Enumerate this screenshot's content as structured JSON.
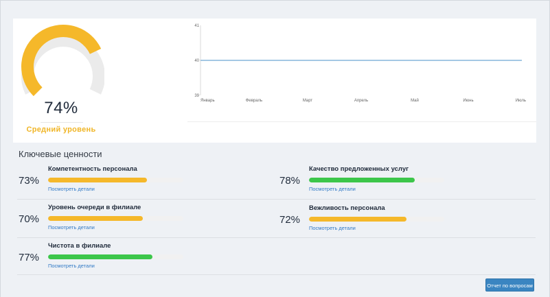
{
  "gauge": {
    "percent": 74,
    "value_text": "74%",
    "label": "Средний уровень",
    "fill_color": "#f5b82a",
    "track_color": "#ebebeb"
  },
  "chart_data": {
    "type": "line",
    "categories": [
      "Январь",
      "Февраль",
      "Март",
      "Апрель",
      "Май",
      "Июнь",
      "Июль"
    ],
    "y_ticks": [
      "41",
      "40",
      "39"
    ],
    "ylim": [
      39,
      41
    ],
    "grid": false,
    "series": [
      {
        "values": [
          40,
          40,
          40,
          40,
          40,
          40,
          40
        ],
        "color": "#4a90c8"
      }
    ]
  },
  "values_section": {
    "title": "Ключевые ценности"
  },
  "metrics": [
    {
      "name": "Компетентность персонала",
      "pct_text": "73%",
      "percent": 73,
      "color": "#f5b82a",
      "details": "Посмотреть детали"
    },
    {
      "name": "Качество предложенных услуг",
      "pct_text": "78%",
      "percent": 78,
      "color": "#3cc64a",
      "details": "Посмотреть детали"
    },
    {
      "name": "Уровень очереди в филиале",
      "pct_text": "70%",
      "percent": 70,
      "color": "#f5b82a",
      "details": "Посмотреть детали"
    },
    {
      "name": "Вежливость персонала",
      "pct_text": "72%",
      "percent": 72,
      "color": "#f5b82a",
      "details": "Посмотреть детали"
    },
    {
      "name": "Чистота в филиале",
      "pct_text": "77%",
      "percent": 77,
      "color": "#3cc64a",
      "details": "Посмотреть детали"
    }
  ],
  "report_button": {
    "label": "Отчет по вопросам"
  }
}
